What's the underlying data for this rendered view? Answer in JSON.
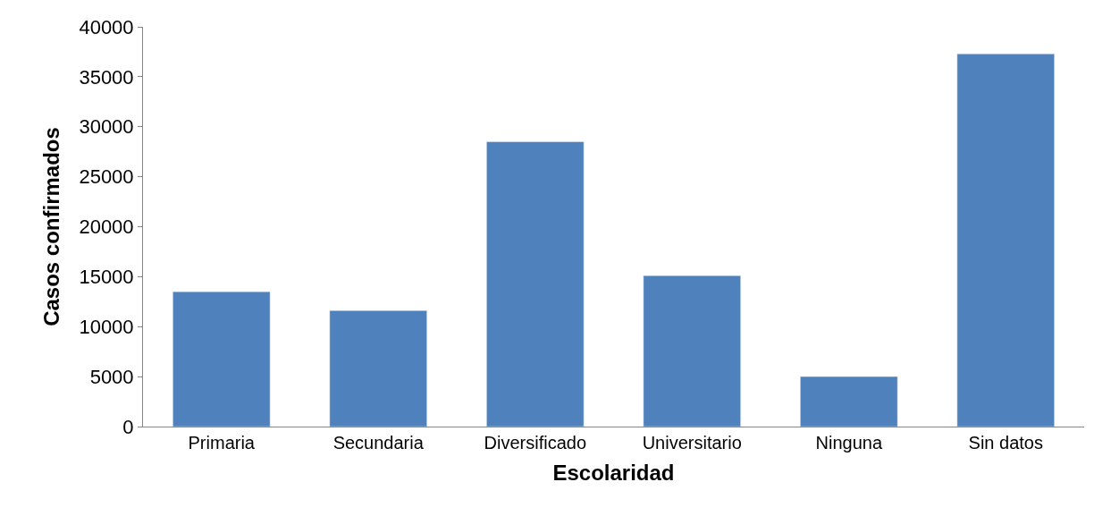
{
  "chart_data": {
    "type": "bar",
    "xlabel": "Escolaridad",
    "ylabel": "Casos confirmados",
    "categories": [
      "Primaria",
      "Secundaria",
      "Diversificado",
      "Universitario",
      "Ninguna",
      "Sin datos"
    ],
    "values": [
      13500,
      11600,
      28500,
      15100,
      5000,
      37300
    ],
    "color": "#4f81bd",
    "ylim": [
      0,
      40000
    ],
    "yticks": [
      0,
      5000,
      10000,
      15000,
      20000,
      25000,
      30000,
      35000,
      40000
    ]
  }
}
